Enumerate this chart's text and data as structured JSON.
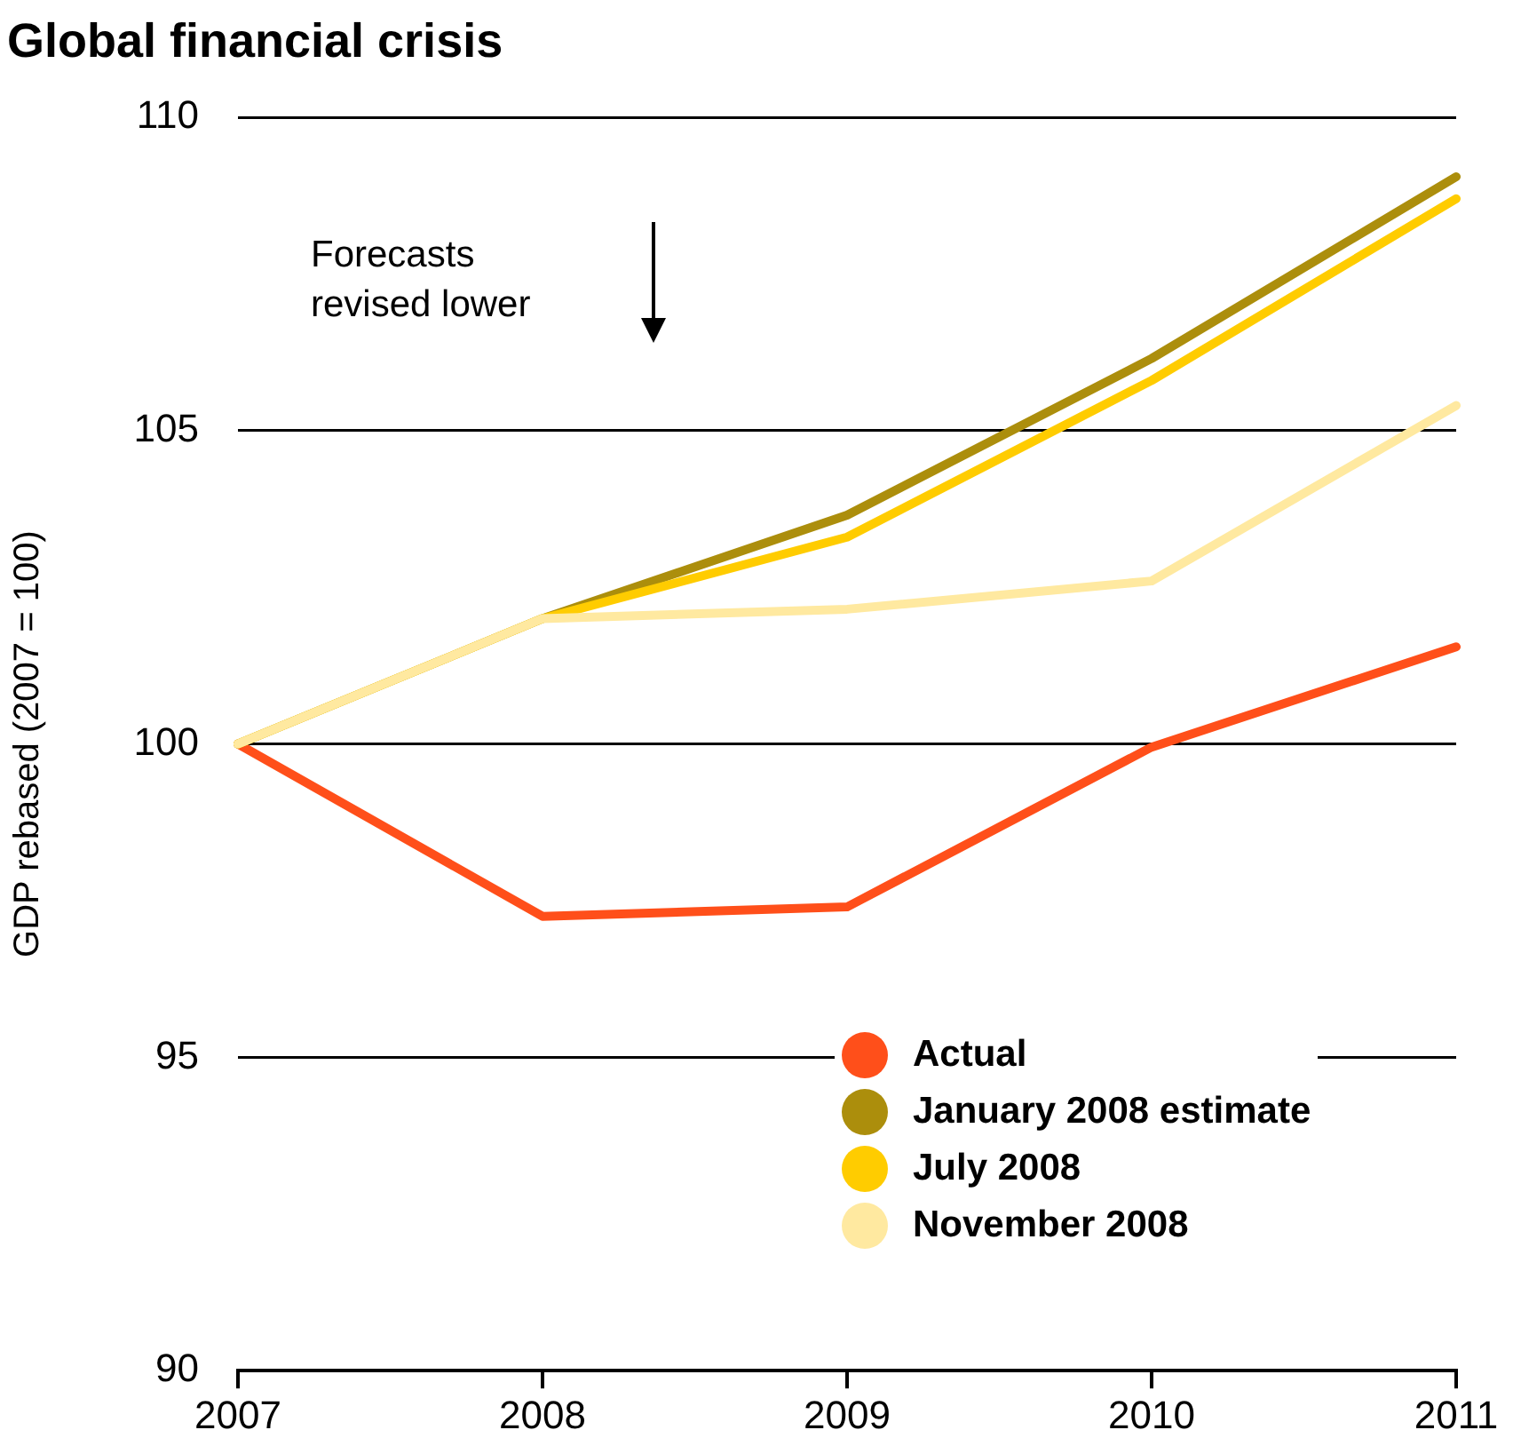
{
  "chart_data": {
    "type": "line",
    "title": "Global financial crisis",
    "ylabel": "GDP rebased (2007 = 100)",
    "categories": [
      "2007",
      "2008",
      "2009",
      "2010",
      "2011"
    ],
    "series": [
      {
        "name": "Actual",
        "color": "#ff4f1a",
        "values": [
          100,
          97.25,
          97.4,
          99.95,
          101.55
        ]
      },
      {
        "name": "January 2008 estimate",
        "color": "#ac8e0c",
        "values": [
          100,
          102,
          103.65,
          106.15,
          109.05
        ]
      },
      {
        "name": "July 2008",
        "color": "#ffcc00",
        "values": [
          100,
          102,
          103.3,
          105.8,
          108.7
        ]
      },
      {
        "name": "November 2008",
        "color": "#ffe9a0",
        "values": [
          100,
          102,
          102.15,
          102.6,
          105.4
        ]
      }
    ],
    "ylim": [
      90,
      110
    ],
    "yticks": [
      90,
      95,
      100,
      105,
      110
    ],
    "grid": "y",
    "legend": "bottom right",
    "marker": "none",
    "line_style": "solid",
    "annotations": [
      "Forecasts\nrevised lower"
    ]
  }
}
